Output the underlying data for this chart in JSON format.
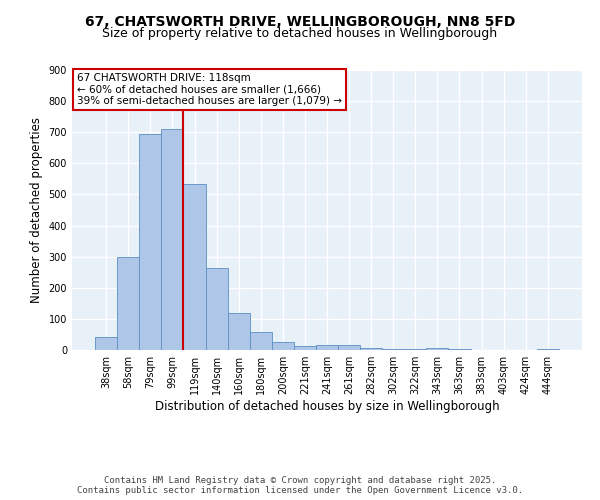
{
  "title_line1": "67, CHATSWORTH DRIVE, WELLINGBOROUGH, NN8 5FD",
  "title_line2": "Size of property relative to detached houses in Wellingborough",
  "xlabel": "Distribution of detached houses by size in Wellingborough",
  "ylabel": "Number of detached properties",
  "categories": [
    "38sqm",
    "58sqm",
    "79sqm",
    "99sqm",
    "119sqm",
    "140sqm",
    "160sqm",
    "180sqm",
    "200sqm",
    "221sqm",
    "241sqm",
    "261sqm",
    "282sqm",
    "302sqm",
    "322sqm",
    "343sqm",
    "363sqm",
    "383sqm",
    "403sqm",
    "424sqm",
    "444sqm"
  ],
  "values": [
    42,
    300,
    695,
    710,
    535,
    262,
    120,
    57,
    25,
    13,
    17,
    17,
    7,
    4,
    2,
    6,
    2,
    1,
    1,
    1,
    4
  ],
  "bar_color": "#aec6e8",
  "bar_edge_color": "#5a8fc2",
  "vline_x_index": 4,
  "vline_color": "#cc0000",
  "annotation_text": "67 CHATSWORTH DRIVE: 118sqm\n← 60% of detached houses are smaller (1,666)\n39% of semi-detached houses are larger (1,079) →",
  "annotation_box_color": "#ffffff",
  "annotation_box_edge_color": "#cc0000",
  "ylim": [
    0,
    900
  ],
  "yticks": [
    0,
    100,
    200,
    300,
    400,
    500,
    600,
    700,
    800,
    900
  ],
  "background_color": "#e8f0f8",
  "grid_color": "#ffffff",
  "footer_text": "Contains HM Land Registry data © Crown copyright and database right 2025.\nContains public sector information licensed under the Open Government Licence v3.0.",
  "title_fontsize": 10,
  "subtitle_fontsize": 9,
  "tick_fontsize": 7,
  "label_fontsize": 8.5,
  "annotation_fontsize": 7.5,
  "footer_fontsize": 6.5
}
